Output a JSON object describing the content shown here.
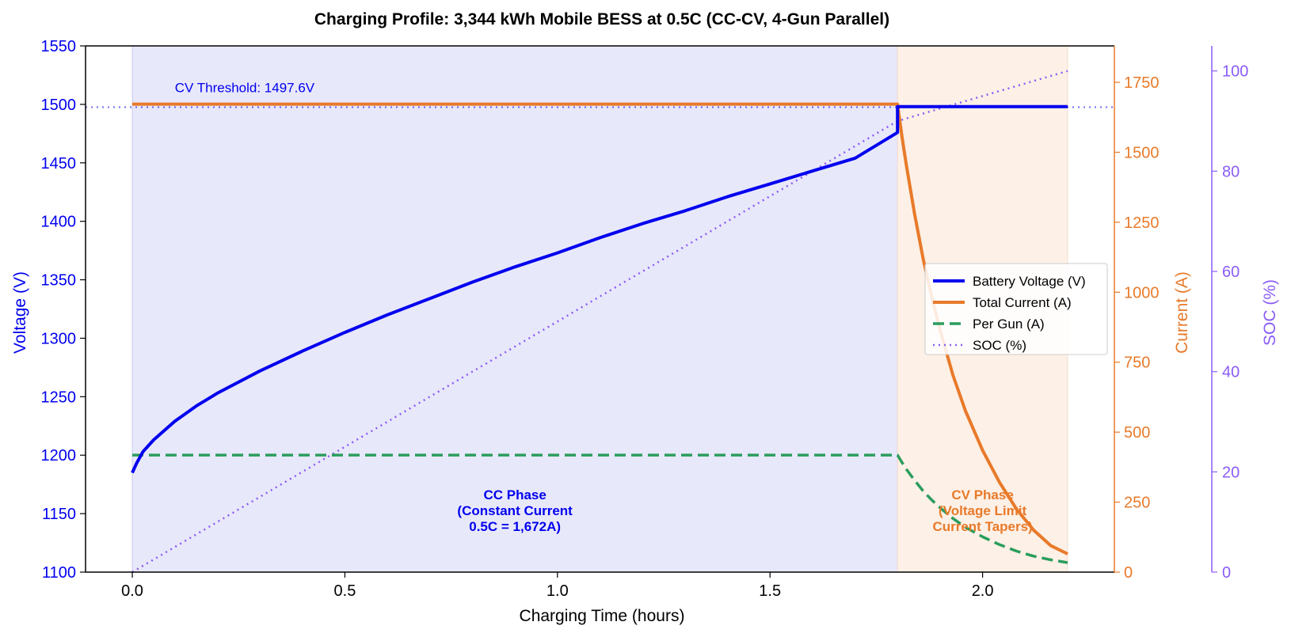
{
  "chart_data": {
    "type": "line",
    "title": "Charging Profile: 3,344 kWh Mobile BESS at 0.5C (CC-CV, 4-Gun Parallel)",
    "xlabel": "Charging Time (hours)",
    "ylabel_left": "Voltage (V)",
    "ylabel_right": "Current (A)",
    "ylabel_right2": "SOC (%)",
    "xlim": [
      -0.11,
      2.31
    ],
    "ylim_left": [
      1100,
      1550
    ],
    "ylim_right": [
      0,
      1880
    ],
    "ylim_right2": [
      0,
      105
    ],
    "x_ticks": [
      "0.0",
      "0.5",
      "1.0",
      "1.5",
      "2.0"
    ],
    "y_left_ticks": [
      "1100",
      "1150",
      "1200",
      "1250",
      "1300",
      "1350",
      "1400",
      "1450",
      "1500",
      "1550"
    ],
    "y_right_ticks": [
      "0",
      "250",
      "500",
      "750",
      "1000",
      "1250",
      "1500",
      "1750"
    ],
    "y_right2_ticks": [
      "0",
      "20",
      "40",
      "60",
      "80",
      "100"
    ],
    "grid": false,
    "legend_position": "center-right",
    "colors": {
      "voltage": "#0000ee",
      "current": "#e87a2a",
      "per_gun": "#2a9d5c",
      "soc": "#8b5cf6",
      "cc_region": "#e8e8fb",
      "cv_region": "#fdf0e6"
    },
    "regions": [
      {
        "name": "CC",
        "x_start": 0.0,
        "x_end": 1.8
      },
      {
        "name": "CV",
        "x_start": 1.8,
        "x_end": 2.2
      }
    ],
    "threshold": {
      "value": 1497.6,
      "label": "CV Threshold: 1497.6V"
    },
    "series": [
      {
        "name": "Battery Voltage (V)",
        "axis": "left",
        "x": [
          0.0,
          0.01,
          0.025,
          0.05,
          0.1,
          0.15,
          0.2,
          0.3,
          0.4,
          0.5,
          0.6,
          0.7,
          0.8,
          0.9,
          1.0,
          1.1,
          1.2,
          1.3,
          1.4,
          1.5,
          1.6,
          1.7,
          1.8,
          1.8,
          2.2
        ],
        "y": [
          1185,
          1193,
          1203,
          1213,
          1229,
          1242,
          1253,
          1272,
          1289,
          1305,
          1320,
          1334,
          1348,
          1361,
          1373,
          1386,
          1398,
          1409,
          1421,
          1432,
          1443,
          1454,
          1476,
          1498,
          1498
        ]
      },
      {
        "name": "Total Current (A)",
        "axis": "right",
        "x": [
          0.0,
          1.8,
          1.81,
          1.82,
          1.84,
          1.86,
          1.88,
          1.9,
          1.93,
          1.96,
          2.0,
          2.04,
          2.08,
          2.12,
          2.16,
          2.2
        ],
        "y": [
          1672,
          1672,
          1560,
          1460,
          1280,
          1120,
          985,
          865,
          705,
          575,
          435,
          320,
          225,
          150,
          95,
          65
        ]
      },
      {
        "name": "Per Gun (A)",
        "axis": "right",
        "x": [
          0.0,
          1.8,
          1.81,
          1.82,
          1.84,
          1.86,
          1.88,
          1.9,
          1.93,
          1.96,
          2.0,
          2.04,
          2.08,
          2.12,
          2.16,
          2.2
        ],
        "y": [
          418,
          418,
          393,
          369,
          328,
          290,
          258,
          230,
          192,
          160,
          126,
          98,
          75,
          57,
          44,
          34
        ]
      },
      {
        "name": "SOC (%)",
        "axis": "right2",
        "x": [
          0.0,
          1.8,
          2.2
        ],
        "y": [
          0,
          90,
          100
        ]
      }
    ],
    "annotations": [
      {
        "name": "cc-phase",
        "lines": [
          "CC Phase",
          "(Constant Current",
          "0.5C = 1,672A)"
        ],
        "x": 0.9,
        "y": 1150,
        "color": "#0000ee"
      },
      {
        "name": "cv-phase",
        "lines": [
          "CV Phase",
          "(Voltage Limit",
          "Current Tapers)"
        ],
        "x": 2.0,
        "y": 1150,
        "color": "#e87a2a"
      }
    ]
  }
}
